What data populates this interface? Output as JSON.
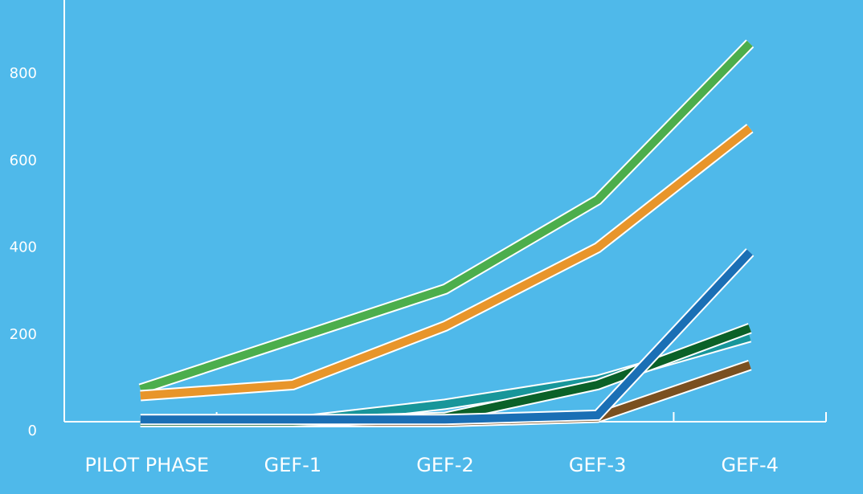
{
  "chart_data": {
    "type": "line",
    "categories": [
      "PILOT PHASE",
      "GEF-1",
      "GEF-2",
      "GEF-3",
      "GEF-4"
    ],
    "series": [
      {
        "color": "#4cae4c",
        "values": [
          75,
          190,
          305,
          510,
          870
        ]
      },
      {
        "color": "#e8952a",
        "values": [
          60,
          85,
          220,
          400,
          675
        ]
      },
      {
        "color": "#18969a",
        "values": [
          0,
          0,
          40,
          95,
          195
        ]
      },
      {
        "color": "#7a5020",
        "values": [
          0,
          0,
          0,
          10,
          130
        ]
      },
      {
        "color": "#0b6128",
        "values": [
          0,
          0,
          10,
          85,
          215
        ]
      },
      {
        "color": "#1a6fb5",
        "values": [
          5,
          5,
          5,
          15,
          390
        ]
      }
    ],
    "ylim": [
      0,
      970
    ],
    "yticks": [
      0,
      200,
      400,
      600,
      800
    ]
  }
}
